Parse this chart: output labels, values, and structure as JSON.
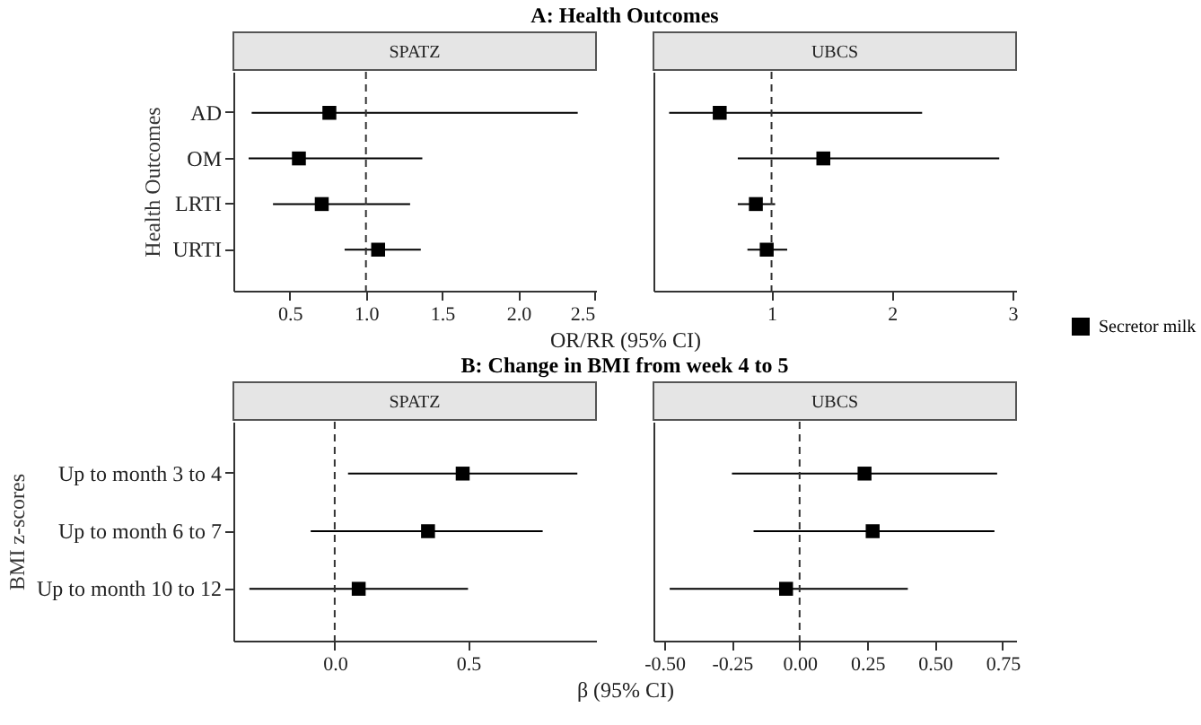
{
  "chart_data": [
    {
      "type": "scatter",
      "title": "SPATZ",
      "annotations": [
        "A: Health Outcomes"
      ],
      "xlabel": "OR/RR (95% CI)",
      "ylabel": "Health Outcomes",
      "orientation": "horizontal",
      "categories": [
        "AD",
        "OM",
        "LRTI",
        "URTI"
      ],
      "xlim": [
        0.13,
        2.51
      ],
      "xticks": [
        {
          "value": 0.5,
          "label": "0.5"
        },
        {
          "value": 1,
          "label": "1.0"
        },
        {
          "value": 1.5,
          "label": "1.5"
        },
        {
          "value": 2,
          "label": "2.0"
        },
        {
          "value": 2.5,
          "label": "2.5"
        }
      ],
      "grid": false,
      "marker": "square",
      "legend": false,
      "ref_lines": [
        {
          "axis": "x",
          "value": 1,
          "line_style": "dashed"
        }
      ],
      "series": [
        {
          "color": "#000000",
          "values": [
            0.76,
            0.56,
            0.71,
            1.08
          ],
          "errors": [
            [
              0.25,
              2.39
            ],
            [
              0.23,
              1.37
            ],
            [
              0.39,
              1.29
            ],
            [
              0.86,
              1.36
            ]
          ]
        }
      ]
    },
    {
      "type": "scatter",
      "title": "UBCS",
      "orientation": "horizontal",
      "categories": [
        null,
        null,
        null,
        null
      ],
      "tick_labels": "x",
      "xlim": [
        0.02,
        3.03
      ],
      "xticks": [
        1,
        2,
        3
      ],
      "grid": false,
      "marker": "square",
      "legend": "right",
      "ref_lines": [
        {
          "axis": "x",
          "value": 1,
          "line_style": "dashed"
        }
      ],
      "series": [
        {
          "name": "Secretor milk",
          "color": "#000000",
          "values": [
            0.57,
            1.43,
            0.87,
            0.96
          ],
          "errors": [
            [
              0.15,
              2.25
            ],
            [
              0.72,
              2.89
            ],
            [
              0.72,
              1.03
            ],
            [
              0.8,
              1.13
            ]
          ]
        }
      ]
    },
    {
      "type": "scatter",
      "title": "SPATZ",
      "annotations": [
        "B: Change in BMI from week 4 to 5"
      ],
      "xlabel": "β (95% CI)",
      "ylabel": "BMI z-scores",
      "orientation": "horizontal",
      "categories": [
        "Up to month 3 to 4",
        "Up to month 6 to 7",
        "Up to month 10 to 12"
      ],
      "xlim": [
        -0.38,
        0.98
      ],
      "xticks": [
        {
          "value": 0,
          "label": "0.0"
        },
        {
          "value": 0.5,
          "label": "0.5"
        }
      ],
      "grid": false,
      "marker": "square",
      "legend": false,
      "ref_lines": [
        {
          "axis": "x",
          "value": 0,
          "line_style": "dashed"
        }
      ],
      "series": [
        {
          "color": "#000000",
          "values": [
            0.48,
            0.35,
            0.09
          ],
          "errors": [
            [
              0.05,
              0.91
            ],
            [
              -0.09,
              0.78
            ],
            [
              -0.32,
              0.5
            ]
          ]
        }
      ]
    },
    {
      "type": "scatter",
      "title": "UBCS",
      "orientation": "horizontal",
      "categories": [
        null,
        null,
        null
      ],
      "tick_labels": "x",
      "xlim": [
        -0.54,
        0.8
      ],
      "xticks": [
        {
          "value": -0.5,
          "label": "-0.50"
        },
        {
          "value": -0.25,
          "label": "-0.25"
        },
        {
          "value": 0,
          "label": "0.00"
        },
        {
          "value": 0.25,
          "label": "0.25"
        },
        {
          "value": 0.5,
          "label": "0.50"
        },
        {
          "value": 0.75,
          "label": "0.75"
        }
      ],
      "grid": false,
      "marker": "square",
      "legend": false,
      "ref_lines": [
        {
          "axis": "x",
          "value": 0,
          "line_style": "dashed"
        }
      ],
      "series": [
        {
          "color": "#000000",
          "values": [
            0.24,
            0.27,
            -0.05
          ],
          "errors": [
            [
              -0.25,
              0.73
            ],
            [
              -0.17,
              0.72
            ],
            [
              -0.48,
              0.4
            ]
          ]
        }
      ]
    }
  ]
}
